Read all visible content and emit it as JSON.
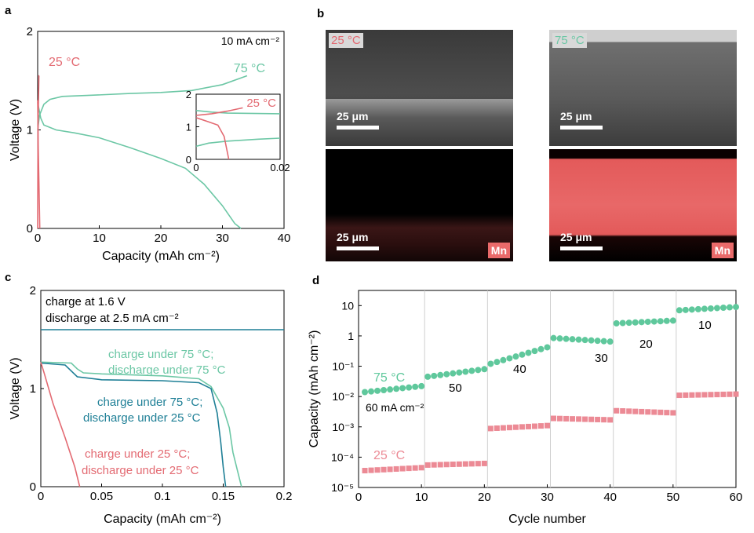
{
  "panel_labels": {
    "a": "a",
    "b": "b",
    "c": "c",
    "d": "d"
  },
  "colors": {
    "green": "#6cc7a5",
    "red": "#e36a72",
    "teal": "#1e7f96",
    "dot_green": "#5fc89c",
    "dot_red": "#ec8a95"
  },
  "panel_b": {
    "img1_tag": "25 °C",
    "img2_tag": "75 °C",
    "scalebar": "25 μm",
    "element": "Mn"
  },
  "chart_data": [
    {
      "id": "a",
      "type": "line",
      "xlabel": "Capacity (mAh cm⁻²)",
      "ylabel": "Voltage (V)",
      "xlim": [
        0,
        40
      ],
      "ylim": [
        0,
        2
      ],
      "xticks": [
        "0",
        "10",
        "20",
        "30",
        "40"
      ],
      "yticks": [
        "0",
        "1",
        "2"
      ],
      "annotations": {
        "rate": "10 mA cm⁻²",
        "t25": "25 °C",
        "t75": "75 °C"
      },
      "series": [
        {
          "name": "75 °C",
          "color": "#6cc7a5",
          "role": "charge",
          "points": [
            [
              0,
              1.0
            ],
            [
              0.3,
              1.15
            ],
            [
              1,
              1.26
            ],
            [
              2,
              1.31
            ],
            [
              4,
              1.34
            ],
            [
              8,
              1.35
            ],
            [
              15,
              1.37
            ],
            [
              20,
              1.38
            ],
            [
              25,
              1.4
            ],
            [
              30,
              1.46
            ],
            [
              34,
              1.55
            ]
          ]
        },
        {
          "name": "75 °C",
          "color": "#6cc7a5",
          "role": "discharge",
          "points": [
            [
              0,
              1.28
            ],
            [
              0.5,
              1.12
            ],
            [
              1,
              1.05
            ],
            [
              3,
              1.0
            ],
            [
              6,
              0.97
            ],
            [
              10,
              0.92
            ],
            [
              15,
              0.82
            ],
            [
              20,
              0.71
            ],
            [
              24,
              0.61
            ],
            [
              27,
              0.45
            ],
            [
              30,
              0.23
            ],
            [
              32,
              0.05
            ],
            [
              33,
              0.0
            ]
          ]
        },
        {
          "name": "25 °C",
          "color": "#e36a72",
          "role": "charge",
          "points": [
            [
              0,
              0.0
            ],
            [
              0.05,
              1.0
            ],
            [
              0.2,
              1.55
            ],
            [
              0.25,
              1.55
            ]
          ]
        },
        {
          "name": "25 °C",
          "color": "#e36a72",
          "role": "discharge",
          "points": [
            [
              0,
              1.3
            ],
            [
              0.1,
              0.8
            ],
            [
              0.25,
              0.3
            ],
            [
              0.35,
              0.0
            ]
          ]
        }
      ],
      "inset": {
        "xlim": [
          0,
          0.027
        ],
        "ylim": [
          0,
          2
        ],
        "xticks": [
          "0",
          "0.02"
        ],
        "yticks": [
          "0",
          "1",
          "2"
        ],
        "label": "25 °C",
        "series": [
          {
            "color": "#6cc7a5",
            "points": [
              [
                0,
                1.5
              ],
              [
                0.005,
                1.45
              ],
              [
                0.01,
                1.42
              ],
              [
                0.027,
                1.4
              ]
            ]
          },
          {
            "color": "#6cc7a5",
            "points": [
              [
                0,
                0.4
              ],
              [
                0.004,
                0.5
              ],
              [
                0.01,
                0.56
              ],
              [
                0.02,
                0.62
              ],
              [
                0.027,
                0.65
              ]
            ]
          },
          {
            "color": "#e36a72",
            "points": [
              [
                0,
                1.35
              ],
              [
                0.005,
                1.4
              ],
              [
                0.01,
                1.48
              ],
              [
                0.015,
                1.58
              ]
            ]
          },
          {
            "color": "#e36a72",
            "points": [
              [
                0,
                1.28
              ],
              [
                0.004,
                1.15
              ],
              [
                0.007,
                1.05
              ],
              [
                0.009,
                0.7
              ],
              [
                0.0105,
                0.0
              ]
            ]
          }
        ]
      }
    },
    {
      "id": "c",
      "type": "line",
      "xlabel": "Capacity (mAh cm⁻²)",
      "ylabel": "Voltage (V)",
      "xlim": [
        0,
        0.2
      ],
      "ylim": [
        0,
        2
      ],
      "xticks": [
        "0",
        "0.05",
        "0.1",
        "0.15",
        "0.2"
      ],
      "yticks": [
        "0",
        "1",
        "2"
      ],
      "annotations": {
        "line1": "charge at 1.6 V",
        "line2": "discharge at 2.5 mA cm⁻²",
        "g1": "charge under 75 °C;",
        "g2": "discharge under 75 °C",
        "t1": "charge under 75 °C;",
        "t2": "discharge under 25 °C",
        "r1": "charge under 25 °C;",
        "r2": "discharge under 25 °C"
      },
      "series": [
        {
          "name": "charge",
          "color": "#1e7f96",
          "points": [
            [
              0,
              1.6
            ],
            [
              0.2,
              1.6
            ]
          ]
        },
        {
          "name": "charge under 75 °C; discharge under 75 °C",
          "color": "#6cc7a5",
          "points": [
            [
              0,
              1.27
            ],
            [
              0.025,
              1.26
            ],
            [
              0.03,
              1.2
            ],
            [
              0.035,
              1.16
            ],
            [
              0.05,
              1.15
            ],
            [
              0.1,
              1.13
            ],
            [
              0.13,
              1.1
            ],
            [
              0.14,
              1.02
            ],
            [
              0.15,
              0.8
            ],
            [
              0.155,
              0.6
            ],
            [
              0.158,
              0.35
            ],
            [
              0.162,
              0.15
            ],
            [
              0.165,
              0.0
            ]
          ]
        },
        {
          "name": "charge under 75 °C; discharge under 25 °C",
          "color": "#1e7f96",
          "points": [
            [
              0,
              1.26
            ],
            [
              0.02,
              1.24
            ],
            [
              0.03,
              1.12
            ],
            [
              0.05,
              1.09
            ],
            [
              0.1,
              1.08
            ],
            [
              0.13,
              1.06
            ],
            [
              0.14,
              1.0
            ],
            [
              0.145,
              0.75
            ],
            [
              0.148,
              0.45
            ],
            [
              0.15,
              0.2
            ],
            [
              0.152,
              0.0
            ]
          ]
        },
        {
          "name": "charge under 25 °C; discharge under 25 °C",
          "color": "#e36a72",
          "points": [
            [
              0,
              1.27
            ],
            [
              0.003,
              1.15
            ],
            [
              0.01,
              0.85
            ],
            [
              0.02,
              0.5
            ],
            [
              0.028,
              0.2
            ],
            [
              0.032,
              0.0
            ]
          ]
        }
      ]
    },
    {
      "id": "d",
      "type": "scatter",
      "xlabel": "Cycle number",
      "ylabel": "Capacity (mAh cm⁻²)",
      "xlim": [
        0,
        60
      ],
      "ylim_log10": [
        -5,
        1.5
      ],
      "yscale": "log",
      "xticks": [
        "0",
        "10",
        "20",
        "30",
        "40",
        "50",
        "60"
      ],
      "yticks": [
        "10⁻⁵",
        "10⁻⁴",
        "10⁻³",
        "10⁻²",
        "10⁻¹",
        "1",
        "10"
      ],
      "rates": [
        "60 mA cm⁻²",
        "50",
        "40",
        "30",
        "20",
        "10"
      ],
      "series": [
        {
          "name": "75 °C",
          "color": "#5fc89c",
          "marker": "circle",
          "segments": [
            [
              1,
              10,
              0.014,
              0.022
            ],
            [
              11,
              20,
              0.045,
              0.08
            ],
            [
              21,
              30,
              0.12,
              0.42
            ],
            [
              31,
              40,
              0.85,
              0.65
            ],
            [
              41,
              50,
              2.6,
              3.2
            ],
            [
              51,
              60,
              7.0,
              9.0
            ]
          ]
        },
        {
          "name": "25 °C",
          "color": "#ec8a95",
          "marker": "square",
          "segments": [
            [
              1,
              10,
              3.6e-05,
              4.5e-05
            ],
            [
              11,
              20,
              5.5e-05,
              6.2e-05
            ],
            [
              21,
              30,
              0.00088,
              0.0011
            ],
            [
              31,
              40,
              0.0019,
              0.0017
            ],
            [
              41,
              50,
              0.0034,
              0.0029
            ],
            [
              51,
              60,
              0.011,
              0.012
            ]
          ]
        }
      ]
    }
  ]
}
